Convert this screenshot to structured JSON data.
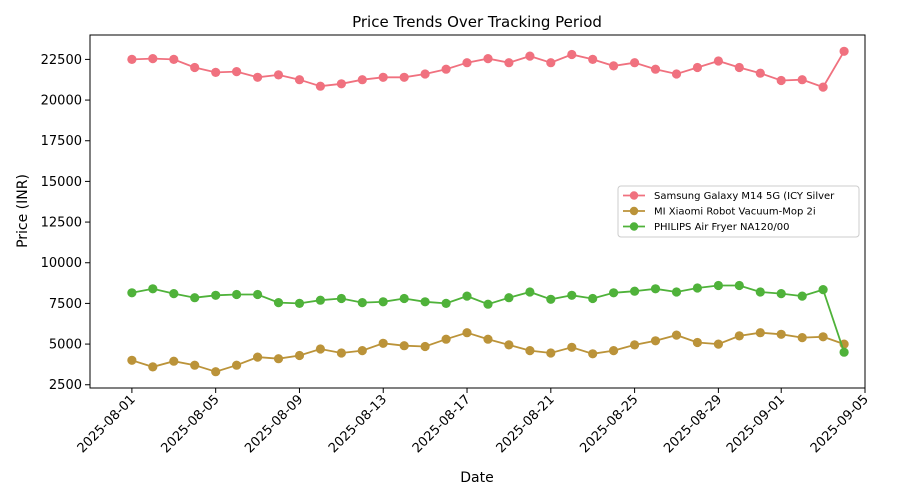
{
  "chart_data": {
    "type": "line",
    "title": "Price Trends Over Tracking Period",
    "xlabel": "Date",
    "ylabel": "Price (INR)",
    "ylim": [
      2300,
      24000
    ],
    "xlim": [
      "2025-07-30",
      "2025-09-05"
    ],
    "grid": false,
    "legend_position": "right",
    "x_ticks": [
      "2025-08-01",
      "2025-08-05",
      "2025-08-09",
      "2025-08-13",
      "2025-08-17",
      "2025-08-21",
      "2025-08-25",
      "2025-08-29",
      "2025-09-01",
      "2025-09-05"
    ],
    "y_ticks": [
      2500,
      5000,
      7500,
      10000,
      12500,
      15000,
      17500,
      20000,
      22500
    ],
    "x": [
      "2025-08-01",
      "2025-08-02",
      "2025-08-03",
      "2025-08-04",
      "2025-08-05",
      "2025-08-06",
      "2025-08-07",
      "2025-08-08",
      "2025-08-09",
      "2025-08-10",
      "2025-08-11",
      "2025-08-12",
      "2025-08-13",
      "2025-08-14",
      "2025-08-15",
      "2025-08-16",
      "2025-08-17",
      "2025-08-18",
      "2025-08-19",
      "2025-08-20",
      "2025-08-21",
      "2025-08-22",
      "2025-08-23",
      "2025-08-24",
      "2025-08-25",
      "2025-08-26",
      "2025-08-27",
      "2025-08-28",
      "2025-08-29",
      "2025-08-30",
      "2025-08-31",
      "2025-09-01",
      "2025-09-02",
      "2025-09-03"
    ],
    "series": [
      {
        "name": "Samsung Galaxy M14 5G (ICY Silver",
        "color": "#f0717f",
        "values": [
          22500,
          22550,
          22500,
          22000,
          21700,
          21750,
          21400,
          21550,
          21250,
          20850,
          21000,
          21250,
          21400,
          21400,
          21600,
          21900,
          22300,
          22550,
          22300,
          22700,
          22300,
          22800,
          22500,
          22100,
          22300,
          21900,
          21600,
          22000,
          22400,
          22000,
          21650,
          21200,
          21250,
          20800
        ],
        "final": {
          "date": "2025-09-04",
          "value": 23000
        }
      },
      {
        "name": "MI Xiaomi Robot Vacuum-Mop 2i",
        "color": "#bb9339",
        "values": [
          4000,
          3600,
          3950,
          3700,
          3300,
          3700,
          4200,
          4100,
          4300,
          4700,
          4450,
          4600,
          5050,
          4900,
          4850,
          5300,
          5700,
          5300,
          4950,
          4600,
          4450,
          4800,
          4400,
          4600,
          4950,
          5200,
          5550,
          5100,
          5000,
          5500,
          5700,
          5600,
          5400,
          5450
        ],
        "final": {
          "date": "2025-09-04",
          "value": 5000
        }
      },
      {
        "name": "PHILIPS Air Fryer NA120/00",
        "color": "#4fb23a",
        "values": [
          8150,
          8400,
          8100,
          7850,
          8000,
          8050,
          8050,
          7550,
          7500,
          7700,
          7800,
          7550,
          7600,
          7800,
          7600,
          7500,
          7950,
          7450,
          7850,
          8200,
          7750,
          8000,
          7800,
          8150,
          8250,
          8400,
          8200,
          8450,
          8600,
          8600,
          8200,
          8100,
          7950,
          8350
        ],
        "final": {
          "date": "2025-09-04",
          "value": 4500
        }
      }
    ]
  }
}
